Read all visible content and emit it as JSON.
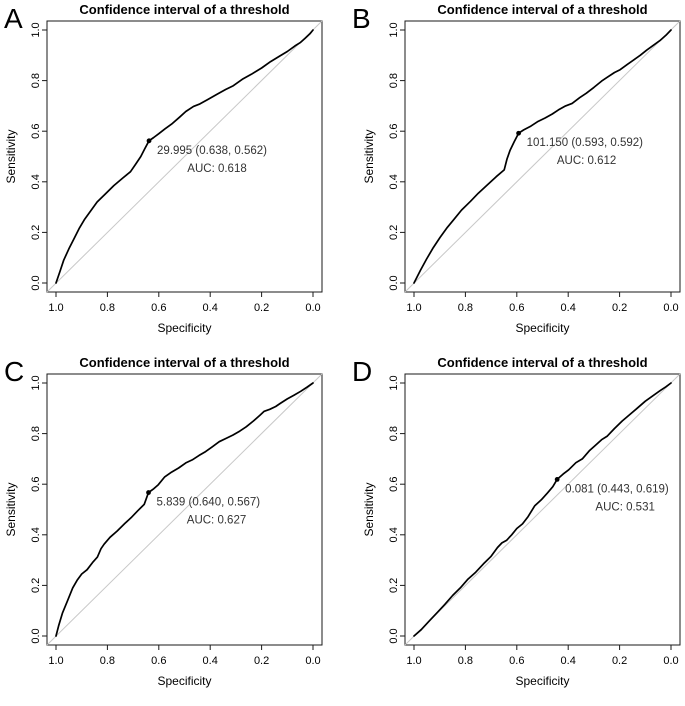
{
  "styles": {
    "background": "#ffffff",
    "curve_color": "#000000",
    "diagonal_color": "#c8c8c8",
    "box_color": "#1a1a1a",
    "tick_color": "#1a1a1a",
    "text_color": "#000000",
    "annotation_color": "#333333"
  },
  "chart_data": [
    {
      "type": "line",
      "panel_label": "A",
      "title": "Confidence interval of a threshold",
      "xlabel": "Specificity",
      "ylabel": "Sensitivity",
      "x_axis_reversed": true,
      "xlim": [
        1.0,
        0.0
      ],
      "ylim": [
        0.0,
        1.0
      ],
      "x_ticks": [
        1.0,
        0.8,
        0.6,
        0.4,
        0.2,
        0.0
      ],
      "y_ticks": [
        0.0,
        0.2,
        0.4,
        0.6,
        0.8,
        1.0
      ],
      "grid": false,
      "legend": false,
      "diagonal_reference_line": true,
      "threshold": 29.995,
      "auc": 0.618,
      "threshold_point": {
        "specificity": 0.638,
        "sensitivity": 0.562
      },
      "annotation_line1": "29.995 (0.638, 0.562)",
      "annotation_line2": "AUC: 0.618",
      "series": [
        {
          "name": "ROC curve",
          "points": [
            [
              1,
              0
            ],
            [
              0.985,
              0.045
            ],
            [
              0.97,
              0.09
            ],
            [
              0.95,
              0.135
            ],
            [
              0.93,
              0.175
            ],
            [
              0.91,
              0.215
            ],
            [
              0.89,
              0.25
            ],
            [
              0.865,
              0.285
            ],
            [
              0.84,
              0.32
            ],
            [
              0.81,
              0.35
            ],
            [
              0.775,
              0.385
            ],
            [
              0.74,
              0.415
            ],
            [
              0.71,
              0.44
            ],
            [
              0.69,
              0.47
            ],
            [
              0.67,
              0.5
            ],
            [
              0.655,
              0.53
            ],
            [
              0.638,
              0.562
            ],
            [
              0.62,
              0.575
            ],
            [
              0.6,
              0.59
            ],
            [
              0.575,
              0.61
            ],
            [
              0.55,
              0.628
            ],
            [
              0.52,
              0.655
            ],
            [
              0.495,
              0.678
            ],
            [
              0.465,
              0.698
            ],
            [
              0.44,
              0.708
            ],
            [
              0.41,
              0.725
            ],
            [
              0.375,
              0.745
            ],
            [
              0.34,
              0.765
            ],
            [
              0.31,
              0.78
            ],
            [
              0.275,
              0.805
            ],
            [
              0.24,
              0.825
            ],
            [
              0.2,
              0.85
            ],
            [
              0.165,
              0.875
            ],
            [
              0.13,
              0.897
            ],
            [
              0.1,
              0.915
            ],
            [
              0.07,
              0.937
            ],
            [
              0.05,
              0.95
            ],
            [
              0.03,
              0.968
            ],
            [
              0.012,
              0.985
            ],
            [
              0,
              1
            ]
          ]
        }
      ]
    },
    {
      "type": "line",
      "panel_label": "B",
      "title": "Confidence interval of a threshold",
      "xlabel": "Specificity",
      "ylabel": "Sensitivity",
      "x_axis_reversed": true,
      "xlim": [
        1.0,
        0.0
      ],
      "ylim": [
        0.0,
        1.0
      ],
      "x_ticks": [
        1.0,
        0.8,
        0.6,
        0.4,
        0.2,
        0.0
      ],
      "y_ticks": [
        0.0,
        0.2,
        0.4,
        0.6,
        0.8,
        1.0
      ],
      "grid": false,
      "legend": false,
      "diagonal_reference_line": true,
      "threshold": 101.15,
      "auc": 0.612,
      "threshold_point": {
        "specificity": 0.593,
        "sensitivity": 0.592
      },
      "annotation_line1": "101.150 (0.593, 0.592)",
      "annotation_line2": "AUC: 0.612",
      "series": [
        {
          "name": "ROC curve",
          "points": [
            [
              1,
              0
            ],
            [
              0.975,
              0.05
            ],
            [
              0.951,
              0.095
            ],
            [
              0.925,
              0.14
            ],
            [
              0.899,
              0.18
            ],
            [
              0.87,
              0.22
            ],
            [
              0.846,
              0.25
            ],
            [
              0.815,
              0.288
            ],
            [
              0.78,
              0.323
            ],
            [
              0.75,
              0.355
            ],
            [
              0.714,
              0.388
            ],
            [
              0.68,
              0.42
            ],
            [
              0.649,
              0.447
            ],
            [
              0.638,
              0.49
            ],
            [
              0.626,
              0.525
            ],
            [
              0.61,
              0.558
            ],
            [
              0.593,
              0.592
            ],
            [
              0.573,
              0.605
            ],
            [
              0.545,
              0.62
            ],
            [
              0.52,
              0.637
            ],
            [
              0.49,
              0.652
            ],
            [
              0.462,
              0.668
            ],
            [
              0.438,
              0.684
            ],
            [
              0.41,
              0.7
            ],
            [
              0.385,
              0.71
            ],
            [
              0.355,
              0.733
            ],
            [
              0.33,
              0.75
            ],
            [
              0.3,
              0.773
            ],
            [
              0.27,
              0.798
            ],
            [
              0.25,
              0.812
            ],
            [
              0.22,
              0.832
            ],
            [
              0.198,
              0.843
            ],
            [
              0.17,
              0.864
            ],
            [
              0.148,
              0.88
            ],
            [
              0.12,
              0.9
            ],
            [
              0.095,
              0.92
            ],
            [
              0.068,
              0.94
            ],
            [
              0.043,
              0.958
            ],
            [
              0.02,
              0.979
            ],
            [
              0,
              1
            ]
          ]
        }
      ]
    },
    {
      "type": "line",
      "panel_label": "C",
      "title": "Confidence interval of a threshold",
      "xlabel": "Specificity",
      "ylabel": "Sensitivity",
      "x_axis_reversed": true,
      "xlim": [
        1.0,
        0.0
      ],
      "ylim": [
        0.0,
        1.0
      ],
      "x_ticks": [
        1.0,
        0.8,
        0.6,
        0.4,
        0.2,
        0.0
      ],
      "y_ticks": [
        0.0,
        0.2,
        0.4,
        0.6,
        0.8,
        1.0
      ],
      "grid": false,
      "legend": false,
      "diagonal_reference_line": true,
      "threshold": 5.839,
      "auc": 0.627,
      "threshold_point": {
        "specificity": 0.64,
        "sensitivity": 0.567
      },
      "annotation_line1": "5.839 (0.640, 0.567)",
      "annotation_line2": "AUC: 0.627",
      "series": [
        {
          "name": "ROC curve",
          "points": [
            [
              1,
              0
            ],
            [
              0.99,
              0.04
            ],
            [
              0.975,
              0.09
            ],
            [
              0.955,
              0.14
            ],
            [
              0.935,
              0.19
            ],
            [
              0.918,
              0.22
            ],
            [
              0.9,
              0.245
            ],
            [
              0.879,
              0.262
            ],
            [
              0.858,
              0.29
            ],
            [
              0.839,
              0.312
            ],
            [
              0.825,
              0.345
            ],
            [
              0.813,
              0.363
            ],
            [
              0.79,
              0.39
            ],
            [
              0.762,
              0.415
            ],
            [
              0.732,
              0.445
            ],
            [
              0.708,
              0.467
            ],
            [
              0.682,
              0.495
            ],
            [
              0.657,
              0.52
            ],
            [
              0.64,
              0.567
            ],
            [
              0.62,
              0.582
            ],
            [
              0.602,
              0.598
            ],
            [
              0.578,
              0.628
            ],
            [
              0.55,
              0.648
            ],
            [
              0.523,
              0.664
            ],
            [
              0.495,
              0.684
            ],
            [
              0.47,
              0.696
            ],
            [
              0.443,
              0.714
            ],
            [
              0.418,
              0.729
            ],
            [
              0.392,
              0.748
            ],
            [
              0.365,
              0.768
            ],
            [
              0.338,
              0.781
            ],
            [
              0.312,
              0.794
            ],
            [
              0.285,
              0.81
            ],
            [
              0.26,
              0.827
            ],
            [
              0.232,
              0.85
            ],
            [
              0.207,
              0.872
            ],
            [
              0.19,
              0.888
            ],
            [
              0.168,
              0.896
            ],
            [
              0.145,
              0.907
            ],
            [
              0.128,
              0.919
            ],
            [
              0.1,
              0.937
            ],
            [
              0.075,
              0.951
            ],
            [
              0.048,
              0.967
            ],
            [
              0.022,
              0.984
            ],
            [
              0,
              1
            ]
          ]
        }
      ]
    },
    {
      "type": "line",
      "panel_label": "D",
      "title": "Confidence interval of a threshold",
      "xlabel": "Specificity",
      "ylabel": "Sensitivity",
      "x_axis_reversed": true,
      "xlim": [
        1.0,
        0.0
      ],
      "ylim": [
        0.0,
        1.0
      ],
      "x_ticks": [
        1.0,
        0.8,
        0.6,
        0.4,
        0.2,
        0.0
      ],
      "y_ticks": [
        0.0,
        0.2,
        0.4,
        0.6,
        0.8,
        1.0
      ],
      "grid": false,
      "legend": false,
      "diagonal_reference_line": true,
      "threshold": 0.081,
      "auc": 0.531,
      "threshold_point": {
        "specificity": 0.443,
        "sensitivity": 0.619
      },
      "annotation_line1": "0.081 (0.443, 0.619)",
      "annotation_line2": "AUC: 0.531",
      "series": [
        {
          "name": "ROC curve",
          "points": [
            [
              1,
              0
            ],
            [
              0.972,
              0.025
            ],
            [
              0.94,
              0.06
            ],
            [
              0.91,
              0.092
            ],
            [
              0.88,
              0.125
            ],
            [
              0.85,
              0.16
            ],
            [
              0.82,
              0.19
            ],
            [
              0.79,
              0.225
            ],
            [
              0.76,
              0.252
            ],
            [
              0.73,
              0.285
            ],
            [
              0.7,
              0.315
            ],
            [
              0.675,
              0.35
            ],
            [
              0.658,
              0.368
            ],
            [
              0.64,
              0.378
            ],
            [
              0.62,
              0.4
            ],
            [
              0.6,
              0.425
            ],
            [
              0.578,
              0.443
            ],
            [
              0.556,
              0.472
            ],
            [
              0.53,
              0.515
            ],
            [
              0.505,
              0.538
            ],
            [
              0.48,
              0.566
            ],
            [
              0.46,
              0.59
            ],
            [
              0.443,
              0.619
            ],
            [
              0.42,
              0.64
            ],
            [
              0.398,
              0.657
            ],
            [
              0.37,
              0.685
            ],
            [
              0.345,
              0.7
            ],
            [
              0.318,
              0.732
            ],
            [
              0.298,
              0.75
            ],
            [
              0.27,
              0.776
            ],
            [
              0.248,
              0.79
            ],
            [
              0.22,
              0.82
            ],
            [
              0.19,
              0.85
            ],
            [
              0.162,
              0.874
            ],
            [
              0.132,
              0.9
            ],
            [
              0.1,
              0.928
            ],
            [
              0.07,
              0.95
            ],
            [
              0.042,
              0.97
            ],
            [
              0.02,
              0.985
            ],
            [
              0,
              1
            ]
          ]
        }
      ]
    }
  ]
}
